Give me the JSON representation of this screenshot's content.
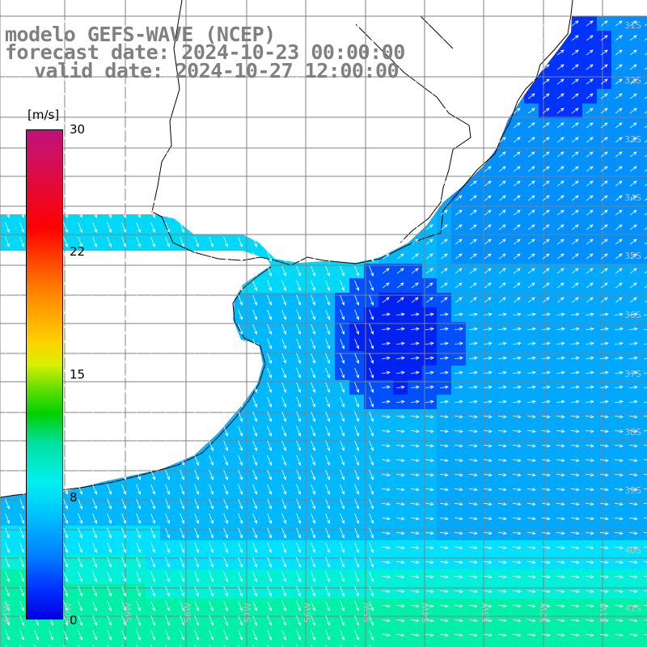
{
  "title": {
    "line1": "modelo GEFS-WAVE (NCEP)",
    "line2": "forecast date: 2024-10-23 00:00:00",
    "line3": "valid date: 2024-10-27 12:00:00"
  },
  "colorbar": {
    "unit": "[m/s]",
    "ticks": [
      "30",
      "22",
      "15",
      "8",
      "0"
    ],
    "tick_values": [
      30,
      22,
      15,
      8,
      0
    ],
    "range": [
      0,
      30
    ],
    "stops": [
      "#0000e0",
      "#0030ff",
      "#0080ff",
      "#00c0ff",
      "#00f0f0",
      "#00e0a0",
      "#00d000",
      "#60e000",
      "#d8f000",
      "#ffd000",
      "#ff7a00",
      "#ff0000",
      "#d01060",
      "#c0107a"
    ]
  },
  "map": {
    "region": "Río de la Plata / southern Brazil, Uruguay, Argentina coast",
    "lat_labels": [
      "31S",
      "32S",
      "33S",
      "34S",
      "35S",
      "36S",
      "37S",
      "38S",
      "39S",
      "40S",
      "41S"
    ],
    "lon_labels": [
      "61W",
      "60W",
      "59W",
      "58W",
      "57W",
      "56W",
      "55W",
      "54W",
      "53W",
      "52W",
      "51W"
    ],
    "land_color": "#ffffff",
    "grid_color": "#808080",
    "arrow_color": "#ffffff"
  }
}
